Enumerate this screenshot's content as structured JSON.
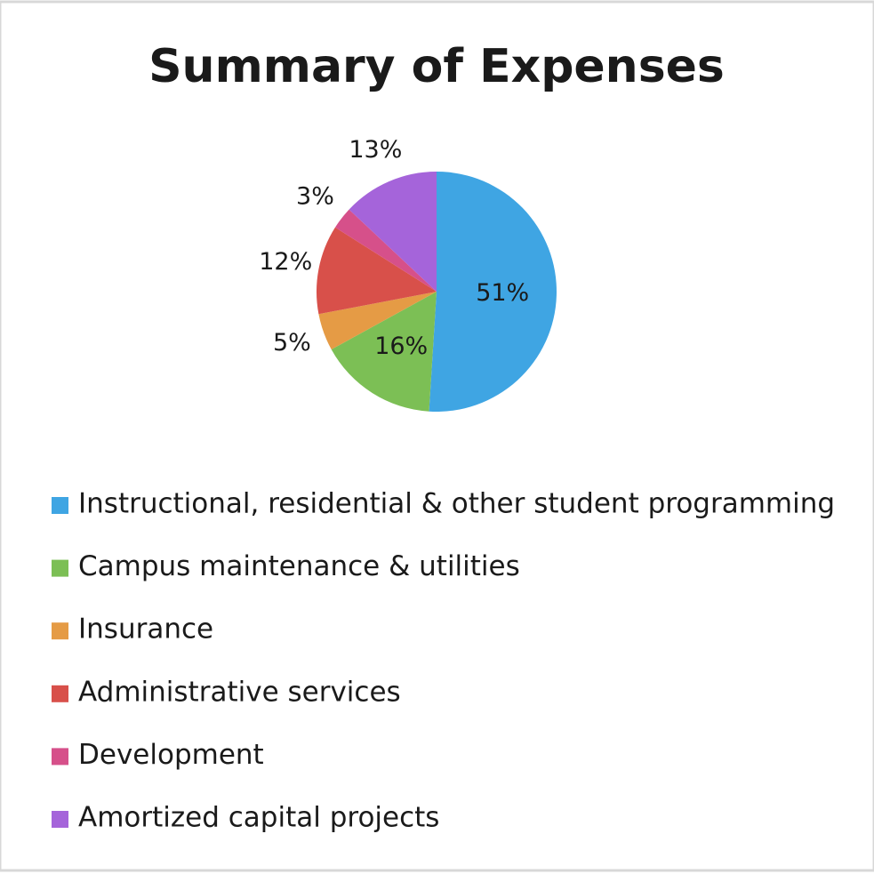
{
  "chart_data": {
    "type": "pie",
    "title": "Summary of Expenses",
    "categories": [
      "Instructional, residential & other student programming",
      "Campus maintenance & utilities",
      "Insurance",
      "Administrative services",
      "Development",
      "Amortized capital projects"
    ],
    "values": [
      51,
      16,
      5,
      12,
      3,
      13
    ],
    "value_labels": [
      "51%",
      "16%",
      "5%",
      "12%",
      "3%",
      "13%"
    ],
    "colors": [
      "#3fa5e3",
      "#7cbf55",
      "#e59b45",
      "#d8504a",
      "#d6508a",
      "#a564da"
    ],
    "legend": "bottom"
  }
}
